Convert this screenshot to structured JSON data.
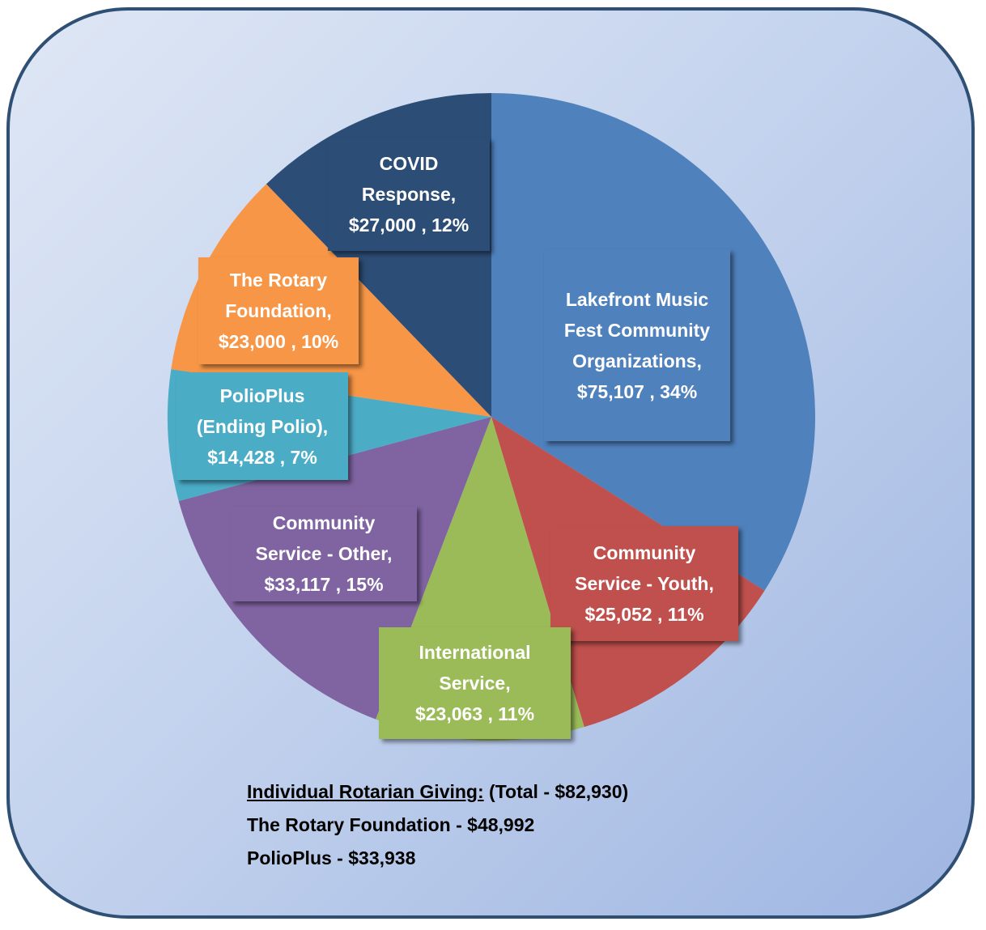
{
  "chart_data": {
    "type": "pie",
    "title": "",
    "slices": [
      {
        "name": "Lakefront Music Fest Community Organizations",
        "label_lines": [
          "Lakefront Music",
          "Fest Community",
          "Organizations,"
        ],
        "value_text": "$75,107 , 34%",
        "value": 75107,
        "percent": 34,
        "color": "#4f81bd"
      },
      {
        "name": "Community Service - Youth",
        "label_lines": [
          "Community",
          "Service - Youth,"
        ],
        "value_text": "$25,052 , 11%",
        "value": 25052,
        "percent": 11,
        "color": "#c0504d"
      },
      {
        "name": "International Service",
        "label_lines": [
          "International",
          "Service,"
        ],
        "value_text": "$23,063 , 11%",
        "value": 23063,
        "percent": 11,
        "color": "#9bbb59"
      },
      {
        "name": "Community Service - Other",
        "label_lines": [
          "Community",
          "Service - Other,"
        ],
        "value_text": "$33,117 , 15%",
        "value": 33117,
        "percent": 15,
        "color": "#8064a2"
      },
      {
        "name": "PolioPlus (Ending Polio)",
        "label_lines": [
          "PolioPlus",
          "(Ending Polio),"
        ],
        "value_text": "$14,428 , 7%",
        "value": 14428,
        "percent": 7,
        "color": "#4bacc6"
      },
      {
        "name": "The Rotary Foundation",
        "label_lines": [
          "The Rotary",
          "Foundation,"
        ],
        "value_text": "$23,000 , 10%",
        "value": 23000,
        "percent": 10,
        "color": "#f79646"
      },
      {
        "name": "COVID Response",
        "label_lines": [
          "COVID",
          "Response,"
        ],
        "value_text": "$27,000 , 12%",
        "value": 27000,
        "percent": 12,
        "color": "#2c4d75"
      }
    ]
  },
  "notes": {
    "heading": "Individual Rotarian Giving:",
    "total": " (Total - $82,930)",
    "line2": "The Rotary Foundation - $48,992",
    "line3": "PolioPlus - $33,938"
  }
}
